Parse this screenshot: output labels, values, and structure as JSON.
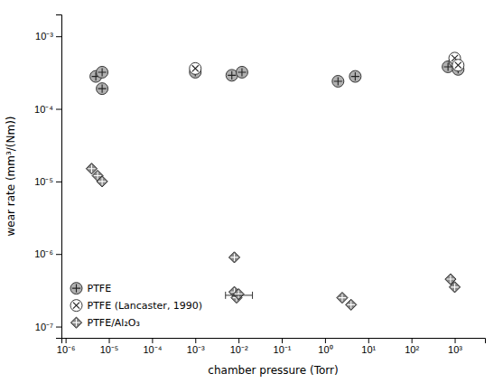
{
  "chart_data": {
    "type": "scatter",
    "xlabel": "chamber pressure (Torr)",
    "ylabel": "wear rate (mm³/(Nm))",
    "log": true,
    "grid": false,
    "legend": "lower left",
    "xlim": [
      8e-07,
      5000
    ],
    "ylim": [
      7e-08,
      0.002
    ],
    "xticks": [
      {
        "value": 1e-06,
        "label": "10⁻⁶"
      },
      {
        "value": 1e-05,
        "label": "10⁻⁵"
      },
      {
        "value": 0.0001,
        "label": "10⁻⁴"
      },
      {
        "value": 0.001,
        "label": "10⁻³"
      },
      {
        "value": 0.01,
        "label": "10⁻²"
      },
      {
        "value": 0.1,
        "label": "10⁻¹"
      },
      {
        "value": 1,
        "label": "10⁰"
      },
      {
        "value": 10,
        "label": "10¹"
      },
      {
        "value": 100,
        "label": "10²"
      },
      {
        "value": 1000,
        "label": "10³"
      }
    ],
    "yticks": [
      {
        "value": 1e-07,
        "label": "10⁻⁷"
      },
      {
        "value": 1e-06,
        "label": "10⁻⁶"
      },
      {
        "value": 1e-05,
        "label": "10⁻⁵"
      },
      {
        "value": 0.0001,
        "label": "10⁻⁴"
      },
      {
        "value": 0.001,
        "label": "10⁻³"
      }
    ],
    "series": [
      {
        "name": "PTFE",
        "color": "#b0b0b0",
        "marker": "circle-cross",
        "x": [
          5e-06,
          7e-06,
          7e-06,
          0.001,
          0.007,
          0.012,
          2.0,
          5.0,
          700,
          1000,
          1200
        ],
        "values": [
          0.00028,
          0.00032,
          0.00019,
          0.00032,
          0.00029,
          0.00032,
          0.00024,
          0.00028,
          0.00038,
          0.00045,
          0.00035
        ]
      },
      {
        "name": "PTFE (Lancaster, 1990)",
        "color": "white",
        "marker": "circle-x",
        "x": [
          0.001,
          1000,
          1200
        ],
        "values": [
          0.00036,
          0.0005,
          0.0004
        ]
      },
      {
        "name": "PTFE/Al₂O₃",
        "color": "#888888",
        "marker": "diamond-cross",
        "x": [
          4e-06,
          5.5e-06,
          7e-06,
          0.008,
          0.009,
          0.01,
          0.008,
          2.5,
          4.0,
          800,
          1000
        ],
        "values": [
          1.5e-05,
          1.2e-05,
          1e-05,
          3e-07,
          2.5e-07,
          2.8e-07,
          9e-07,
          2.5e-07,
          2e-07,
          4.5e-07,
          3.5e-07
        ]
      }
    ],
    "error_bar": {
      "x": 0.009,
      "y": 2.7e-07,
      "xerr_lo": 0.004,
      "xerr_hi": 0.012
    }
  }
}
